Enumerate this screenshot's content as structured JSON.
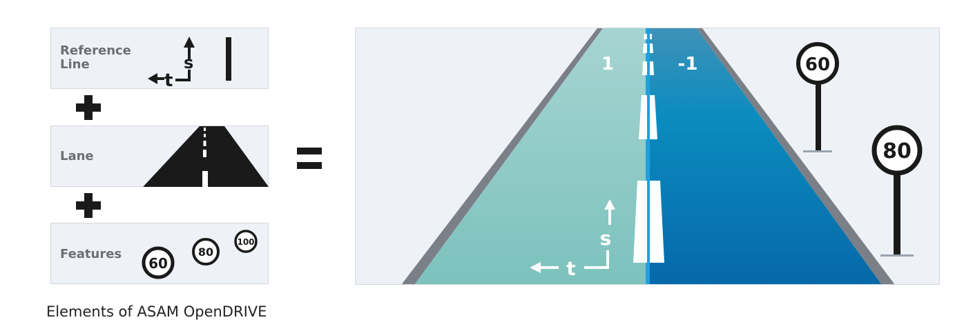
{
  "boxes": {
    "reference_line": {
      "label_line1": "Reference",
      "label_line2": "Line",
      "s": "s",
      "t": "t"
    },
    "lane": {
      "label": "Lane"
    },
    "features": {
      "label": "Features",
      "signs": [
        "60",
        "80",
        "100"
      ]
    }
  },
  "road": {
    "lane_left": "1",
    "lane_right": "-1",
    "s": "s",
    "t": "t",
    "signs": [
      "60",
      "80"
    ]
  },
  "caption": "Elements of ASAM OpenDRIVE",
  "colors": {
    "box_bg": "#eef2f6",
    "lane_left": "#8fcac6",
    "lane_right": "#0a6fa8",
    "center_line": "#1fa0e0",
    "road_edge": "#7b8088",
    "ink": "#1a1a1a"
  }
}
